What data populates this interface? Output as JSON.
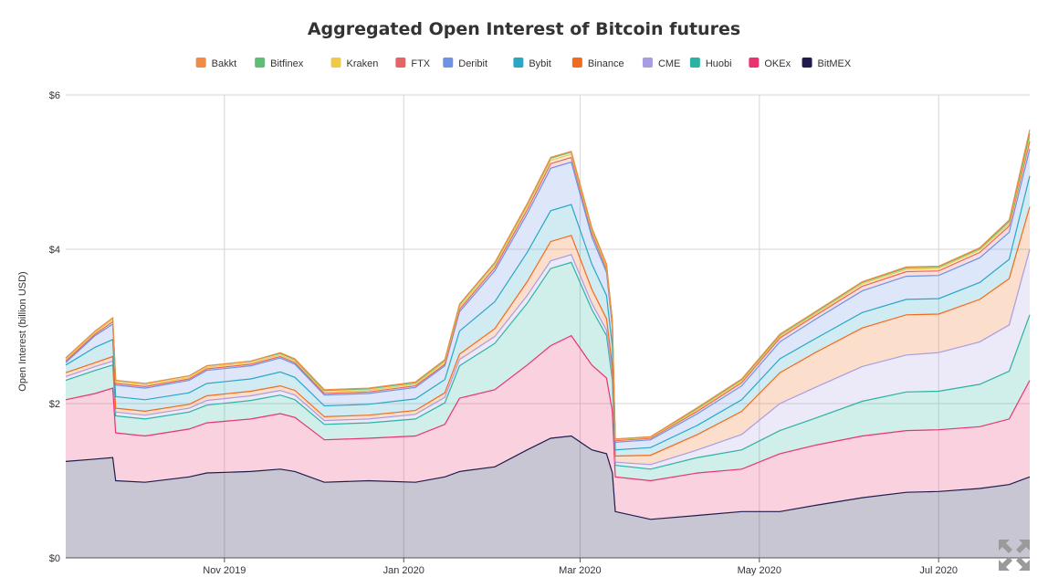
{
  "chart_data": {
    "type": "area",
    "stacked": true,
    "title": "Aggregated Open Interest of Bitcoin futures",
    "ylabel": "Open Interest (billion USD)",
    "xlabel": "",
    "ylim": [
      0,
      6
    ],
    "y_ticks": [
      0,
      2,
      4,
      6
    ],
    "y_tick_labels": [
      "$0",
      "$2",
      "$4",
      "$6"
    ],
    "x_ticks": [
      "2019-11-01",
      "2020-01-01",
      "2020-03-01",
      "2020-05-01",
      "2020-07-01"
    ],
    "x_tick_labels": [
      "Nov 2019",
      "Jan 2020",
      "Mar 2020",
      "May 2020",
      "Jul 2020"
    ],
    "xlim": [
      "2019-09-08",
      "2020-08-01"
    ],
    "grid": true,
    "legend_position": "top",
    "x": [
      "2019-09-08",
      "2019-09-18",
      "2019-09-24",
      "2019-09-25",
      "2019-10-05",
      "2019-10-20",
      "2019-10-26",
      "2019-11-10",
      "2019-11-20",
      "2019-11-25",
      "2019-12-05",
      "2019-12-20",
      "2020-01-05",
      "2020-01-15",
      "2020-01-20",
      "2020-02-01",
      "2020-02-12",
      "2020-02-20",
      "2020-02-27",
      "2020-03-05",
      "2020-03-10",
      "2020-03-12",
      "2020-03-13",
      "2020-03-25",
      "2020-04-10",
      "2020-04-25",
      "2020-05-08",
      "2020-05-20",
      "2020-06-05",
      "2020-06-20",
      "2020-07-01",
      "2020-07-15",
      "2020-07-25",
      "2020-08-01"
    ],
    "series": [
      {
        "name": "BitMEX",
        "color": "#1f1b4d",
        "values": [
          1.25,
          1.28,
          1.3,
          1.0,
          0.98,
          1.05,
          1.1,
          1.12,
          1.15,
          1.12,
          0.98,
          1.0,
          0.98,
          1.05,
          1.12,
          1.18,
          1.4,
          1.55,
          1.58,
          1.4,
          1.35,
          1.1,
          0.6,
          0.5,
          0.55,
          0.6,
          0.6,
          0.68,
          0.78,
          0.85,
          0.86,
          0.9,
          0.95,
          1.05
        ]
      },
      {
        "name": "OKEx",
        "color": "#e8336e",
        "values": [
          0.8,
          0.85,
          0.9,
          0.62,
          0.6,
          0.62,
          0.65,
          0.68,
          0.72,
          0.7,
          0.55,
          0.55,
          0.6,
          0.68,
          0.95,
          1.0,
          1.1,
          1.2,
          1.3,
          1.1,
          0.98,
          0.8,
          0.45,
          0.5,
          0.55,
          0.55,
          0.75,
          0.78,
          0.8,
          0.8,
          0.8,
          0.8,
          0.85,
          1.25
        ]
      },
      {
        "name": "Huobi",
        "color": "#2bb3a1",
        "values": [
          0.25,
          0.3,
          0.3,
          0.22,
          0.22,
          0.22,
          0.23,
          0.24,
          0.24,
          0.23,
          0.2,
          0.2,
          0.22,
          0.28,
          0.42,
          0.6,
          0.8,
          1.0,
          0.95,
          0.72,
          0.55,
          0.4,
          0.15,
          0.15,
          0.2,
          0.25,
          0.3,
          0.35,
          0.45,
          0.5,
          0.5,
          0.55,
          0.62,
          0.85
        ]
      },
      {
        "name": "CME",
        "color": "#a99de0",
        "values": [
          0.05,
          0.05,
          0.05,
          0.05,
          0.05,
          0.05,
          0.06,
          0.06,
          0.06,
          0.06,
          0.05,
          0.05,
          0.06,
          0.07,
          0.08,
          0.09,
          0.1,
          0.1,
          0.1,
          0.08,
          0.07,
          0.06,
          0.04,
          0.06,
          0.1,
          0.2,
          0.35,
          0.4,
          0.45,
          0.48,
          0.5,
          0.55,
          0.6,
          0.85
        ]
      },
      {
        "name": "Binance",
        "color": "#f26a1b",
        "values": [
          0.05,
          0.05,
          0.06,
          0.05,
          0.05,
          0.05,
          0.06,
          0.06,
          0.06,
          0.06,
          0.05,
          0.05,
          0.05,
          0.06,
          0.07,
          0.1,
          0.18,
          0.25,
          0.25,
          0.18,
          0.15,
          0.12,
          0.08,
          0.12,
          0.2,
          0.3,
          0.4,
          0.45,
          0.5,
          0.52,
          0.5,
          0.55,
          0.6,
          0.55
        ]
      },
      {
        "name": "Bybit",
        "color": "#2aa7c4",
        "values": [
          0.1,
          0.2,
          0.22,
          0.15,
          0.15,
          0.15,
          0.16,
          0.16,
          0.18,
          0.17,
          0.14,
          0.14,
          0.15,
          0.17,
          0.3,
          0.35,
          0.38,
          0.4,
          0.4,
          0.33,
          0.3,
          0.26,
          0.08,
          0.1,
          0.12,
          0.15,
          0.18,
          0.18,
          0.2,
          0.2,
          0.2,
          0.22,
          0.25,
          0.4
        ]
      },
      {
        "name": "Deribit",
        "color": "#6b93e6",
        "values": [
          0.03,
          0.15,
          0.2,
          0.15,
          0.15,
          0.16,
          0.17,
          0.17,
          0.18,
          0.17,
          0.14,
          0.14,
          0.15,
          0.18,
          0.25,
          0.4,
          0.5,
          0.55,
          0.55,
          0.35,
          0.3,
          0.25,
          0.1,
          0.1,
          0.15,
          0.18,
          0.22,
          0.25,
          0.28,
          0.3,
          0.3,
          0.32,
          0.35,
          0.35
        ]
      },
      {
        "name": "FTX",
        "color": "#e86464",
        "values": [
          0.02,
          0.02,
          0.03,
          0.02,
          0.02,
          0.02,
          0.02,
          0.02,
          0.02,
          0.02,
          0.02,
          0.02,
          0.02,
          0.02,
          0.03,
          0.04,
          0.05,
          0.06,
          0.06,
          0.05,
          0.04,
          0.03,
          0.02,
          0.02,
          0.03,
          0.04,
          0.05,
          0.05,
          0.06,
          0.06,
          0.06,
          0.07,
          0.08,
          0.1
        ]
      },
      {
        "name": "Kraken",
        "color": "#f1c84a",
        "values": [
          0.02,
          0.02,
          0.03,
          0.02,
          0.02,
          0.02,
          0.02,
          0.02,
          0.02,
          0.02,
          0.02,
          0.02,
          0.02,
          0.03,
          0.03,
          0.03,
          0.04,
          0.04,
          0.04,
          0.03,
          0.03,
          0.03,
          0.01,
          0.01,
          0.02,
          0.02,
          0.02,
          0.02,
          0.03,
          0.03,
          0.03,
          0.03,
          0.03,
          0.05
        ]
      },
      {
        "name": "Bitfinex",
        "color": "#5cbf73",
        "values": [
          0.02,
          0.02,
          0.02,
          0.02,
          0.02,
          0.02,
          0.02,
          0.02,
          0.02,
          0.02,
          0.02,
          0.02,
          0.02,
          0.02,
          0.03,
          0.03,
          0.03,
          0.03,
          0.03,
          0.03,
          0.03,
          0.02,
          0.01,
          0.01,
          0.02,
          0.02,
          0.02,
          0.02,
          0.02,
          0.02,
          0.02,
          0.02,
          0.03,
          0.05
        ]
      },
      {
        "name": "Bakkt",
        "color": "#f08c45",
        "values": [
          0.0,
          0.0,
          0.0,
          0.0,
          0.0,
          0.0,
          0.0,
          0.0,
          0.01,
          0.01,
          0.01,
          0.01,
          0.01,
          0.01,
          0.01,
          0.01,
          0.01,
          0.01,
          0.01,
          0.01,
          0.01,
          0.01,
          0.0,
          0.0,
          0.01,
          0.01,
          0.01,
          0.01,
          0.01,
          0.01,
          0.01,
          0.01,
          0.02,
          0.05
        ]
      }
    ],
    "legend_order": [
      "Bakkt",
      "Bitfinex",
      "Kraken",
      "FTX",
      "Deribit",
      "Bybit",
      "Binance",
      "CME",
      "Huobi",
      "OKEx",
      "BitMEX"
    ]
  },
  "controls": {
    "expand_icon": "expand-arrows-icon"
  }
}
